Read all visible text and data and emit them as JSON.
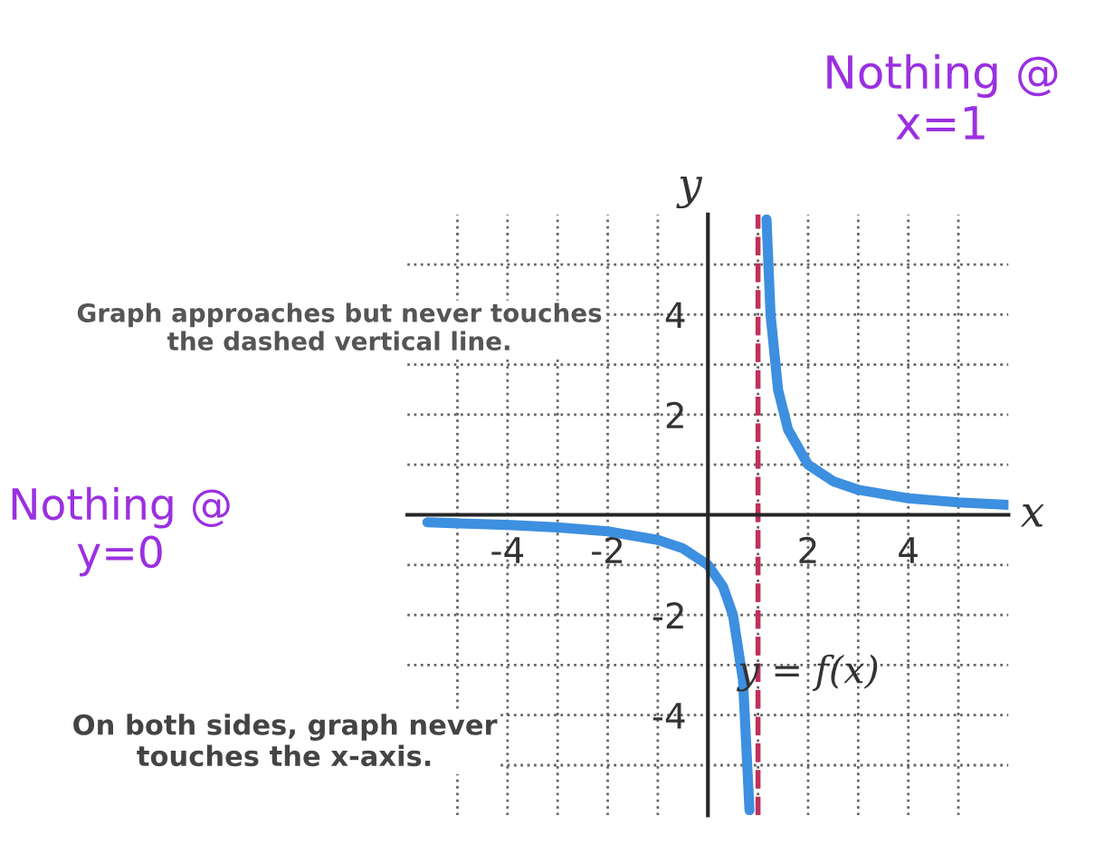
{
  "chart_data": {
    "type": "line",
    "xlabel": "x",
    "ylabel": "y",
    "xlim": [
      -6,
      6
    ],
    "ylim": [
      -6,
      6
    ],
    "xticks": [
      {
        "value": -5,
        "label": null
      },
      -4,
      {
        "value": -3,
        "label": null
      },
      -2,
      {
        "value": -1,
        "label": null
      },
      {
        "value": 1,
        "label": null
      },
      2,
      {
        "value": 3,
        "label": null
      },
      4,
      {
        "value": 5,
        "label": null
      }
    ],
    "yticks": [
      {
        "value": -5,
        "label": null
      },
      -4,
      {
        "value": -3,
        "label": null
      },
      -2,
      {
        "value": -1,
        "label": null
      },
      {
        "value": 1,
        "label": null
      },
      2,
      {
        "value": 3,
        "label": null
      },
      4,
      {
        "value": 5,
        "label": null
      }
    ],
    "grid": true,
    "legend": false,
    "marker": "none",
    "line_style": "solid",
    "x": [
      -5.6,
      -5,
      -4,
      -3,
      -2,
      -1,
      -0.5,
      0,
      0.3,
      0.5,
      0.7,
      0.83,
      1,
      1.17,
      1.25,
      1.4,
      1.6,
      2,
      2.5,
      3,
      4,
      5,
      6
    ],
    "series": [
      {
        "name": "y = f(x)",
        "color": "#3d8fe0",
        "values": [
          -0.15,
          -0.17,
          -0.2,
          -0.25,
          -0.33,
          -0.5,
          -0.67,
          -1,
          -1.43,
          -2,
          -3.3,
          -5.9,
          null,
          5.9,
          4,
          2.5,
          1.7,
          1,
          0.67,
          0.5,
          0.33,
          0.25,
          0.2
        ]
      }
    ],
    "ref_lines": [
      {
        "axis": "x",
        "value": 1,
        "label": null,
        "color": "#c0305a",
        "line_style": "dashed"
      }
    ],
    "annotations": [
      "Nothing @ x=1",
      "Graph approaches but never touches the dashed vertical line.",
      "Nothing @ y=0",
      "On both sides, graph never touches the x-axis."
    ]
  }
}
